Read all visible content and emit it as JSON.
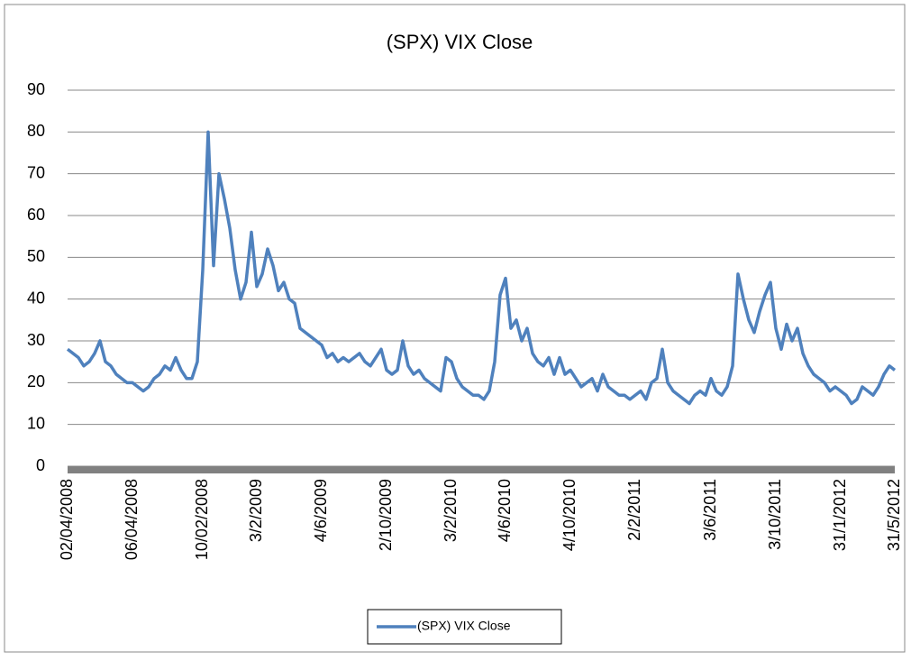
{
  "chart_data": {
    "type": "line",
    "title": "(SPX) VIX Close",
    "categories": [
      "02/04/2008",
      null,
      null,
      null,
      null,
      null,
      null,
      null,
      null,
      null,
      null,
      null,
      "06/04/2008",
      null,
      null,
      null,
      null,
      null,
      null,
      null,
      null,
      null,
      null,
      null,
      null,
      "10/02/2008",
      null,
      null,
      null,
      null,
      null,
      null,
      null,
      null,
      null,
      "3/2/2009",
      null,
      null,
      null,
      null,
      null,
      null,
      null,
      null,
      null,
      null,
      null,
      "4/6/2009",
      null,
      null,
      null,
      null,
      null,
      null,
      null,
      null,
      null,
      null,
      null,
      "2/10/2009",
      null,
      null,
      null,
      null,
      null,
      null,
      null,
      null,
      null,
      null,
      null,
      "3/2/2010",
      null,
      null,
      null,
      null,
      null,
      null,
      null,
      null,
      null,
      "4/6/2010",
      null,
      null,
      null,
      null,
      null,
      null,
      null,
      null,
      null,
      null,
      null,
      "4/10/2010",
      null,
      null,
      null,
      null,
      null,
      null,
      null,
      null,
      null,
      null,
      null,
      "2/2/2011",
      null,
      null,
      null,
      null,
      null,
      null,
      null,
      null,
      null,
      null,
      null,
      null,
      null,
      "3/6/2011",
      null,
      null,
      null,
      null,
      null,
      null,
      null,
      null,
      null,
      null,
      null,
      "3/10/2011",
      null,
      null,
      null,
      null,
      null,
      null,
      null,
      null,
      null,
      null,
      null,
      "31/1/2012",
      null,
      null,
      null,
      null,
      null,
      null,
      null,
      null,
      null,
      "31/5/2012"
    ],
    "series": [
      {
        "name": "(SPX) VIX Close",
        "color": "#4f81bd",
        "values": [
          28,
          27,
          26,
          24,
          25,
          27,
          30,
          25,
          24,
          22,
          21,
          20,
          20,
          19,
          18,
          19,
          21,
          22,
          24,
          23,
          26,
          23,
          21,
          21,
          25,
          47,
          80,
          48,
          70,
          64,
          57,
          47,
          40,
          44,
          56,
          43,
          46,
          52,
          48,
          42,
          44,
          40,
          39,
          33,
          32,
          31,
          30,
          29,
          26,
          27,
          25,
          26,
          25,
          26,
          27,
          25,
          24,
          26,
          28,
          23,
          22,
          23,
          30,
          24,
          22,
          23,
          21,
          20,
          19,
          18,
          26,
          25,
          21,
          19,
          18,
          17,
          17,
          16,
          18,
          25,
          41,
          45,
          33,
          35,
          30,
          33,
          27,
          25,
          24,
          26,
          22,
          26,
          22,
          23,
          21,
          19,
          20,
          21,
          18,
          22,
          19,
          18,
          17,
          17,
          16,
          17,
          18,
          16,
          20,
          21,
          28,
          20,
          18,
          17,
          16,
          15,
          17,
          18,
          17,
          21,
          18,
          17,
          19,
          24,
          46,
          40,
          35,
          32,
          37,
          41,
          44,
          33,
          28,
          34,
          30,
          33,
          27,
          24,
          22,
          21,
          20,
          18,
          19,
          18,
          17,
          15,
          16,
          19,
          18,
          17,
          19,
          22,
          24,
          23
        ]
      }
    ],
    "ylim": [
      0,
      90
    ],
    "yticks": [
      0,
      10,
      20,
      30,
      40,
      50,
      60,
      70,
      80,
      90
    ],
    "grid": true,
    "legend": "bottom"
  }
}
